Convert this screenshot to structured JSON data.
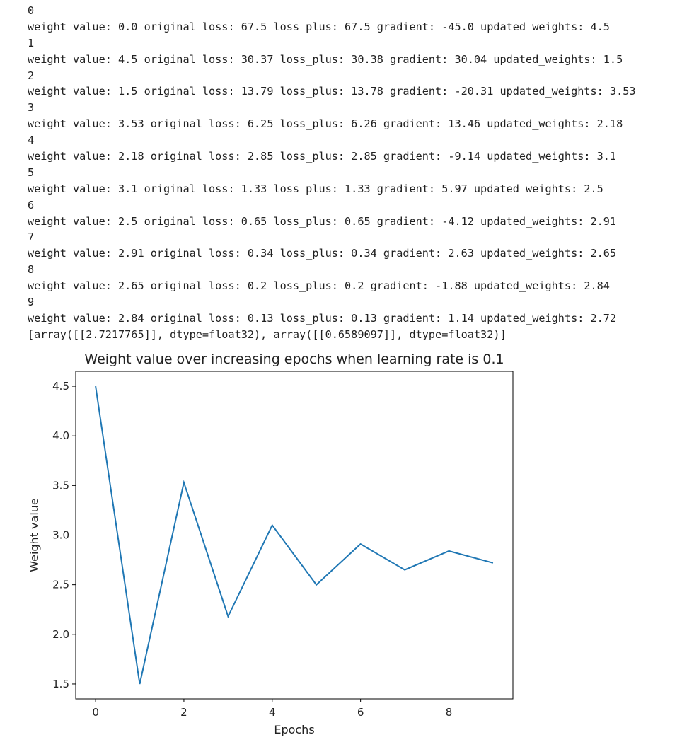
{
  "output": {
    "lines": [
      "0",
      "weight value: 0.0 original loss: 67.5 loss_plus: 67.5 gradient: -45.0 updated_weights: 4.5",
      "1",
      "weight value: 4.5 original loss: 30.37 loss_plus: 30.38 gradient: 30.04 updated_weights: 1.5",
      "2",
      "weight value: 1.5 original loss: 13.79 loss_plus: 13.78 gradient: -20.31 updated_weights: 3.53",
      "3",
      "weight value: 3.53 original loss: 6.25 loss_plus: 6.26 gradient: 13.46 updated_weights: 2.18",
      "4",
      "weight value: 2.18 original loss: 2.85 loss_plus: 2.85 gradient: -9.14 updated_weights: 3.1",
      "5",
      "weight value: 3.1 original loss: 1.33 loss_plus: 1.33 gradient: 5.97 updated_weights: 2.5",
      "6",
      "weight value: 2.5 original loss: 0.65 loss_plus: 0.65 gradient: -4.12 updated_weights: 2.91",
      "7",
      "weight value: 2.91 original loss: 0.34 loss_plus: 0.34 gradient: 2.63 updated_weights: 2.65",
      "8",
      "weight value: 2.65 original loss: 0.2 loss_plus: 0.2 gradient: -1.88 updated_weights: 2.84",
      "9",
      "weight value: 2.84 original loss: 0.13 loss_plus: 0.13 gradient: 1.14 updated_weights: 2.72",
      "[array([[2.7217765]], dtype=float32), array([[0.6589097]], dtype=float32)]"
    ]
  },
  "chart_data": {
    "type": "line",
    "title": "Weight value over increasing epochs when learning rate is 0.1",
    "xlabel": "Epochs",
    "ylabel": "Weight value",
    "x": [
      0,
      1,
      2,
      3,
      4,
      5,
      6,
      7,
      8,
      9
    ],
    "series": [
      {
        "values": [
          4.5,
          1.5,
          3.53,
          2.18,
          3.1,
          2.5,
          2.91,
          2.65,
          2.84,
          2.72
        ],
        "color": "#1f77b4"
      }
    ],
    "xticks": [
      0,
      2,
      4,
      6,
      8
    ],
    "xtick_labels": [
      "0",
      "2",
      "4",
      "6",
      "8"
    ],
    "yticks": [
      1.5,
      2.0,
      2.5,
      3.0,
      3.5,
      4.0,
      4.5
    ],
    "ytick_labels": [
      "1.5",
      "2.0",
      "2.5",
      "3.0",
      "3.5",
      "4.0",
      "4.5"
    ],
    "xlim": [
      -0.45,
      9.45
    ],
    "ylim": [
      1.35,
      4.65
    ],
    "grid": false,
    "legend": "none"
  }
}
